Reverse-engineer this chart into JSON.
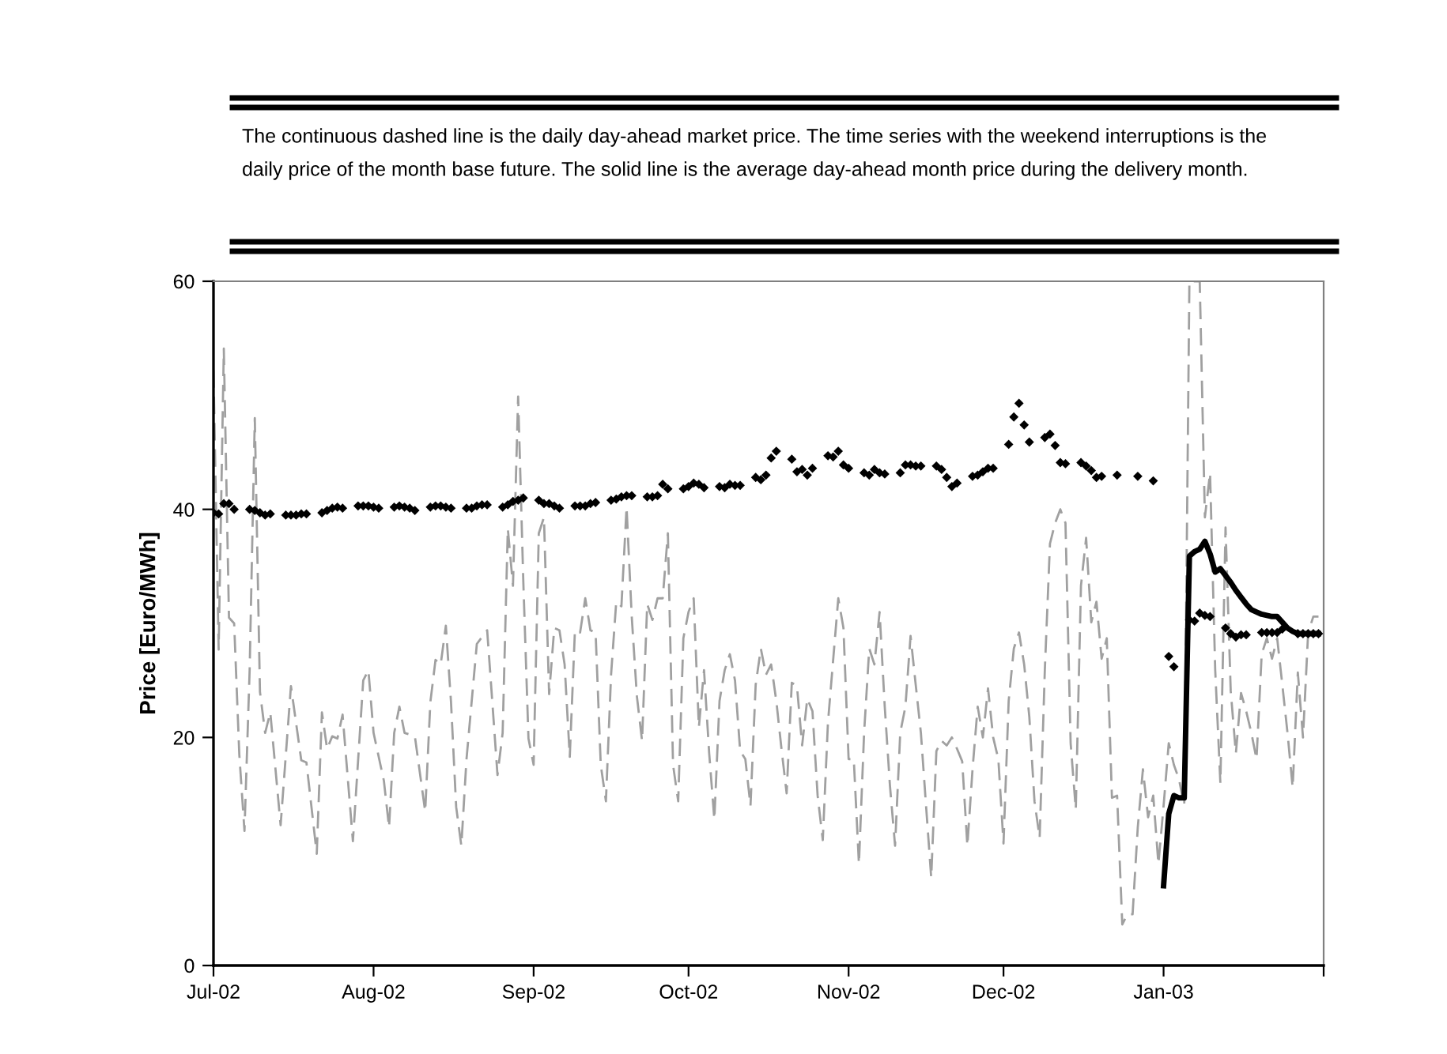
{
  "chart_data": {
    "type": "line",
    "ylabel": "Price [Euro/MWh]",
    "annotations": [
      "The continuous dashed line is the daily day-ahead market price. The time series with the weekend interruptions is the",
      "daily price of the month base future. The solid line is the average day-ahead month price during the delivery month."
    ],
    "xlim": [
      "2002-07-01",
      "2003-02-01"
    ],
    "xticks": [
      {
        "value": "2002-07-01",
        "label": "Jul-02"
      },
      {
        "value": "2002-08-01",
        "label": "Aug-02"
      },
      {
        "value": "2002-09-01",
        "label": "Sep-02"
      },
      {
        "value": "2002-10-01",
        "label": "Oct-02"
      },
      {
        "value": "2002-11-01",
        "label": "Nov-02"
      },
      {
        "value": "2002-12-01",
        "label": "Dec-02"
      },
      {
        "value": "2003-01-01",
        "label": "Jan-03"
      },
      {
        "value": "2003-02-01",
        "label": null
      }
    ],
    "ylim": [
      0,
      60
    ],
    "yticks": [
      0,
      20,
      40,
      60
    ],
    "grid": false,
    "series": [
      {
        "color": "#a0a0a0",
        "line_style": "dashed",
        "marker": "none",
        "x": [
          "2002-07-01",
          "2002-07-02",
          "2002-07-03",
          "2002-07-04",
          "2002-07-05",
          "2002-07-06",
          "2002-07-07",
          "2002-07-08",
          "2002-07-09",
          "2002-07-10",
          "2002-07-11",
          "2002-07-12",
          "2002-07-14",
          "2002-07-16",
          "2002-07-18",
          "2002-07-19",
          "2002-07-21",
          "2002-07-22",
          "2002-07-23",
          "2002-07-24",
          "2002-07-25",
          "2002-07-26",
          "2002-07-28",
          "2002-07-30",
          "2002-07-31",
          "2002-08-01",
          "2002-08-03",
          "2002-08-04",
          "2002-08-05",
          "2002-08-06",
          "2002-08-07",
          "2002-08-09",
          "2002-08-11",
          "2002-08-12",
          "2002-08-13",
          "2002-08-14",
          "2002-08-15",
          "2002-08-16",
          "2002-08-17",
          "2002-08-18",
          "2002-08-19",
          "2002-08-21",
          "2002-08-23",
          "2002-08-24",
          "2002-08-25",
          "2002-08-26",
          "2002-08-27",
          "2002-08-28",
          "2002-08-29",
          "2002-08-30",
          "2002-08-31",
          "2002-09-01",
          "2002-09-02",
          "2002-09-03",
          "2002-09-04",
          "2002-09-05",
          "2002-09-06",
          "2002-09-07",
          "2002-09-08",
          "2002-09-09",
          "2002-09-10",
          "2002-09-11",
          "2002-09-12",
          "2002-09-13",
          "2002-09-14",
          "2002-09-15",
          "2002-09-16",
          "2002-09-17",
          "2002-09-18",
          "2002-09-19",
          "2002-09-20",
          "2002-09-21",
          "2002-09-22",
          "2002-09-23",
          "2002-09-24",
          "2002-09-25",
          "2002-09-26",
          "2002-09-27",
          "2002-09-28",
          "2002-09-29",
          "2002-09-30",
          "2002-10-01",
          "2002-10-02",
          "2002-10-03",
          "2002-10-04",
          "2002-10-05",
          "2002-10-06",
          "2002-10-07",
          "2002-10-08",
          "2002-10-09",
          "2002-10-10",
          "2002-10-11",
          "2002-10-12",
          "2002-10-13",
          "2002-10-14",
          "2002-10-15",
          "2002-10-16",
          "2002-10-17",
          "2002-10-18",
          "2002-10-19",
          "2002-10-20",
          "2002-10-21",
          "2002-10-22",
          "2002-10-23",
          "2002-10-24",
          "2002-10-25",
          "2002-10-26",
          "2002-10-27",
          "2002-10-28",
          "2002-10-30",
          "2002-10-31",
          "2002-11-01",
          "2002-11-02",
          "2002-11-03",
          "2002-11-04",
          "2002-11-05",
          "2002-11-06",
          "2002-11-07",
          "2002-11-08",
          "2002-11-09",
          "2002-11-10",
          "2002-11-11",
          "2002-11-12",
          "2002-11-13",
          "2002-11-14",
          "2002-11-15",
          "2002-11-16",
          "2002-11-17",
          "2002-11-18",
          "2002-11-19",
          "2002-11-20",
          "2002-11-21",
          "2002-11-22",
          "2002-11-23",
          "2002-11-24",
          "2002-11-25",
          "2002-11-26",
          "2002-11-27",
          "2002-11-28",
          "2002-11-29",
          "2002-11-30",
          "2002-12-01",
          "2002-12-02",
          "2002-12-03",
          "2002-12-04",
          "2002-12-05",
          "2002-12-06",
          "2002-12-07",
          "2002-12-08",
          "2002-12-09",
          "2002-12-10",
          "2002-12-11",
          "2002-12-12",
          "2002-12-13",
          "2002-12-14",
          "2002-12-15",
          "2002-12-16",
          "2002-12-17",
          "2002-12-18",
          "2002-12-19",
          "2002-12-20",
          "2002-12-21",
          "2002-12-22",
          "2002-12-23",
          "2002-12-24",
          "2002-12-25",
          "2002-12-26",
          "2002-12-27",
          "2002-12-28",
          "2002-12-29",
          "2002-12-30",
          "2002-12-31",
          "2003-01-01",
          "2003-01-02",
          "2003-01-03",
          "2003-01-04",
          "2003-01-05",
          "2003-01-06",
          "2003-01-08",
          "2003-01-09",
          "2003-01-10",
          "2003-01-11",
          "2003-01-12",
          "2003-01-13",
          "2003-01-14",
          "2003-01-15",
          "2003-01-16",
          "2003-01-17",
          "2003-01-18",
          "2003-01-19",
          "2003-01-20",
          "2003-01-21",
          "2003-01-22",
          "2003-01-23",
          "2003-01-24",
          "2003-01-25",
          "2003-01-26",
          "2003-01-27",
          "2003-01-28",
          "2003-01-29",
          "2003-01-30",
          "2003-01-31"
        ],
        "values": [
          52.2,
          27.7,
          54.1,
          30.5,
          30,
          18.5,
          11.8,
          25.9,
          48,
          24,
          20.4,
          22.2,
          12.3,
          24.5,
          18,
          17.8,
          9.8,
          22.2,
          19,
          20.1,
          19.9,
          22,
          10.9,
          25,
          25.9,
          20.4,
          16.2,
          12.1,
          20.4,
          22.7,
          20.4,
          20.1,
          13.5,
          23.1,
          26.8,
          26.4,
          29.8,
          23.1,
          13.9,
          10.5,
          18.1,
          28.2,
          29.4,
          23.1,
          16.7,
          20.4,
          38.3,
          33.3,
          49.9,
          33.7,
          19.9,
          17.6,
          37.9,
          39.3,
          23.8,
          29.6,
          29.4,
          26.4,
          18.3,
          29.4,
          29.2,
          32.2,
          29.4,
          29.2,
          17.6,
          14.4,
          25.5,
          31.9,
          31.5,
          40.2,
          30.6,
          23.6,
          19.7,
          31.7,
          30.3,
          32.2,
          32.2,
          37.9,
          17.6,
          14.4,
          28.7,
          31,
          32.2,
          20.9,
          25.9,
          18.6,
          12.8,
          23.2,
          25.9,
          27.3,
          25,
          18.8,
          18.1,
          14,
          24.6,
          27.8,
          25.5,
          26.4,
          23.2,
          19,
          15.1,
          24.8,
          24.5,
          19.3,
          23.4,
          22.3,
          14.9,
          11,
          21.3,
          32.2,
          29.6,
          18.1,
          18.1,
          8.9,
          20.4,
          27.8,
          26.4,
          31,
          22.7,
          15.8,
          10.5,
          20.4,
          22.7,
          28.9,
          24.6,
          20.4,
          14,
          7.7,
          18.8,
          19.7,
          19.3,
          20,
          19,
          17.9,
          10.5,
          17.2,
          22.7,
          20,
          24.3,
          20,
          18.1,
          10.7,
          23.2,
          27.8,
          29.2,
          26.4,
          21.8,
          14.4,
          11.2,
          25.9,
          37,
          38.8,
          40,
          38.8,
          19.5,
          13.7,
          33.3,
          37.5,
          30.1,
          31.9,
          26.9,
          28.7,
          14.7,
          14.9,
          3.6,
          4.5,
          4.5,
          12.1,
          17.2,
          13,
          14.9,
          8.9,
          14,
          19.5,
          17.6,
          16.3,
          14,
          60,
          60,
          39.3,
          43.2,
          25.9,
          16,
          38.4,
          24.1,
          18.6,
          23.9,
          22.3,
          20.4,
          18.1,
          27.3,
          28.7,
          26.9,
          28.7,
          24.6,
          20.4,
          15.6,
          25.7,
          20,
          29.2,
          30.6,
          30.6
        ]
      },
      {
        "type": "scatter",
        "color": "#000000",
        "marker": "diamond",
        "x": [
          "2002-07-01",
          "2002-07-02",
          "2002-07-03",
          "2002-07-04",
          "2002-07-05",
          "2002-07-08",
          "2002-07-09",
          "2002-07-10",
          "2002-07-11",
          "2002-07-12",
          "2002-07-15",
          "2002-07-16",
          "2002-07-17",
          "2002-07-18",
          "2002-07-19",
          "2002-07-22",
          "2002-07-23",
          "2002-07-24",
          "2002-07-25",
          "2002-07-26",
          "2002-07-29",
          "2002-07-30",
          "2002-07-31",
          "2002-08-01",
          "2002-08-02",
          "2002-08-05",
          "2002-08-06",
          "2002-08-07",
          "2002-08-08",
          "2002-08-09",
          "2002-08-12",
          "2002-08-13",
          "2002-08-14",
          "2002-08-15",
          "2002-08-16",
          "2002-08-19",
          "2002-08-20",
          "2002-08-21",
          "2002-08-22",
          "2002-08-23",
          "2002-08-26",
          "2002-08-27",
          "2002-08-28",
          "2002-08-29",
          "2002-08-30",
          "2002-09-02",
          "2002-09-03",
          "2002-09-04",
          "2002-09-05",
          "2002-09-06",
          "2002-09-09",
          "2002-09-10",
          "2002-09-11",
          "2002-09-12",
          "2002-09-13",
          "2002-09-16",
          "2002-09-17",
          "2002-09-18",
          "2002-09-19",
          "2002-09-20",
          "2002-09-23",
          "2002-09-24",
          "2002-09-25",
          "2002-09-26",
          "2002-09-27",
          "2002-09-30",
          "2002-10-01",
          "2002-10-02",
          "2002-10-03",
          "2002-10-04",
          "2002-10-07",
          "2002-10-08",
          "2002-10-09",
          "2002-10-10",
          "2002-10-11",
          "2002-10-14",
          "2002-10-15",
          "2002-10-16",
          "2002-10-17",
          "2002-10-18",
          "2002-10-21",
          "2002-10-22",
          "2002-10-23",
          "2002-10-24",
          "2002-10-25",
          "2002-10-28",
          "2002-10-29",
          "2002-10-30",
          "2002-10-31",
          "2002-11-01",
          "2002-11-04",
          "2002-11-05",
          "2002-11-06",
          "2002-11-07",
          "2002-11-08",
          "2002-11-11",
          "2002-11-12",
          "2002-11-13",
          "2002-11-14",
          "2002-11-15",
          "2002-11-18",
          "2002-11-19",
          "2002-11-20",
          "2002-11-21",
          "2002-11-22",
          "2002-11-25",
          "2002-11-26",
          "2002-11-27",
          "2002-11-28",
          "2002-11-29",
          "2002-12-02",
          "2002-12-03",
          "2002-12-04",
          "2002-12-05",
          "2002-12-06",
          "2002-12-09",
          "2002-12-10",
          "2002-12-11",
          "2002-12-12",
          "2002-12-13",
          "2002-12-16",
          "2002-12-17",
          "2002-12-18",
          "2002-12-19",
          "2002-12-20",
          "2002-12-23",
          "2002-12-27",
          "2002-12-30",
          "2003-01-02",
          "2003-01-03",
          "2003-01-06",
          "2003-01-07",
          "2003-01-08",
          "2003-01-09",
          "2003-01-10",
          "2003-01-13",
          "2003-01-14",
          "2003-01-15",
          "2003-01-16",
          "2003-01-17",
          "2003-01-20",
          "2003-01-21",
          "2003-01-22",
          "2003-01-23",
          "2003-01-24",
          "2003-01-27",
          "2003-01-28",
          "2003-01-29",
          "2003-01-30",
          "2003-01-31"
        ],
        "values": [
          39.7,
          39.6,
          40.5,
          40.5,
          40,
          40,
          39.9,
          39.7,
          39.5,
          39.6,
          39.5,
          39.5,
          39.5,
          39.6,
          39.6,
          39.7,
          39.9,
          40.1,
          40.2,
          40.1,
          40.3,
          40.3,
          40.3,
          40.2,
          40.1,
          40.2,
          40.3,
          40.2,
          40.1,
          39.9,
          40.2,
          40.3,
          40.3,
          40.2,
          40.1,
          40.1,
          40.1,
          40.3,
          40.4,
          40.4,
          40.2,
          40.4,
          40.7,
          40.8,
          41,
          40.8,
          40.5,
          40.5,
          40.3,
          40.1,
          40.3,
          40.3,
          40.3,
          40.5,
          40.6,
          40.8,
          40.9,
          41.1,
          41.2,
          41.2,
          41.1,
          41.1,
          41.2,
          42.2,
          41.8,
          41.8,
          42,
          42.3,
          42.2,
          41.9,
          42,
          41.9,
          42.2,
          42.1,
          42.1,
          42.8,
          42.6,
          43,
          44.5,
          45.1,
          44.4,
          43.3,
          43.5,
          43,
          43.6,
          44.7,
          44.6,
          45.1,
          43.9,
          43.6,
          43.2,
          43,
          43.5,
          43.2,
          43.1,
          43.2,
          43.9,
          43.9,
          43.8,
          43.8,
          43.8,
          43.5,
          42.8,
          42,
          42.3,
          42.9,
          43,
          43.3,
          43.6,
          43.6,
          45.7,
          48.1,
          49.3,
          47.4,
          45.9,
          46.3,
          46.6,
          45.6,
          44.1,
          44,
          44.1,
          43.8,
          43.4,
          42.8,
          42.9,
          43,
          42.9,
          42.5,
          27.1,
          26.2,
          30.3,
          30.2,
          30.9,
          30.7,
          30.6,
          29.6,
          29.1,
          28.8,
          29,
          29,
          29.2,
          29.2,
          29.2,
          29.2,
          29.5,
          29.1,
          29.1,
          29.1,
          29.1,
          29.1
        ]
      },
      {
        "color": "#000000",
        "line_style": "solid",
        "marker": "none",
        "x": [
          "2003-01-01",
          "2003-01-02",
          "2003-01-03",
          "2003-01-04",
          "2003-01-05",
          "2003-01-06",
          "2003-01-07",
          "2003-01-08",
          "2003-01-09",
          "2003-01-10",
          "2003-01-11",
          "2003-01-12",
          "2003-01-13",
          "2003-01-14",
          "2003-01-15",
          "2003-01-16",
          "2003-01-17",
          "2003-01-18",
          "2003-01-19",
          "2003-01-20",
          "2003-01-21",
          "2003-01-22",
          "2003-01-23",
          "2003-01-24",
          "2003-01-25",
          "2003-01-26",
          "2003-01-27",
          "2003-01-28",
          "2003-01-29",
          "2003-01-30",
          "2003-01-31"
        ],
        "values": [
          7,
          13.3,
          14.9,
          14.7,
          14.7,
          35.9,
          36.3,
          36.5,
          37.2,
          36.1,
          34.5,
          34.8,
          34.2,
          33.6,
          32.9,
          32.3,
          31.7,
          31.2,
          31,
          30.8,
          30.7,
          30.6,
          30.6,
          30.1,
          29.6,
          29.3,
          29.1,
          29.1,
          29.1,
          29.1,
          29.1
        ]
      }
    ]
  }
}
